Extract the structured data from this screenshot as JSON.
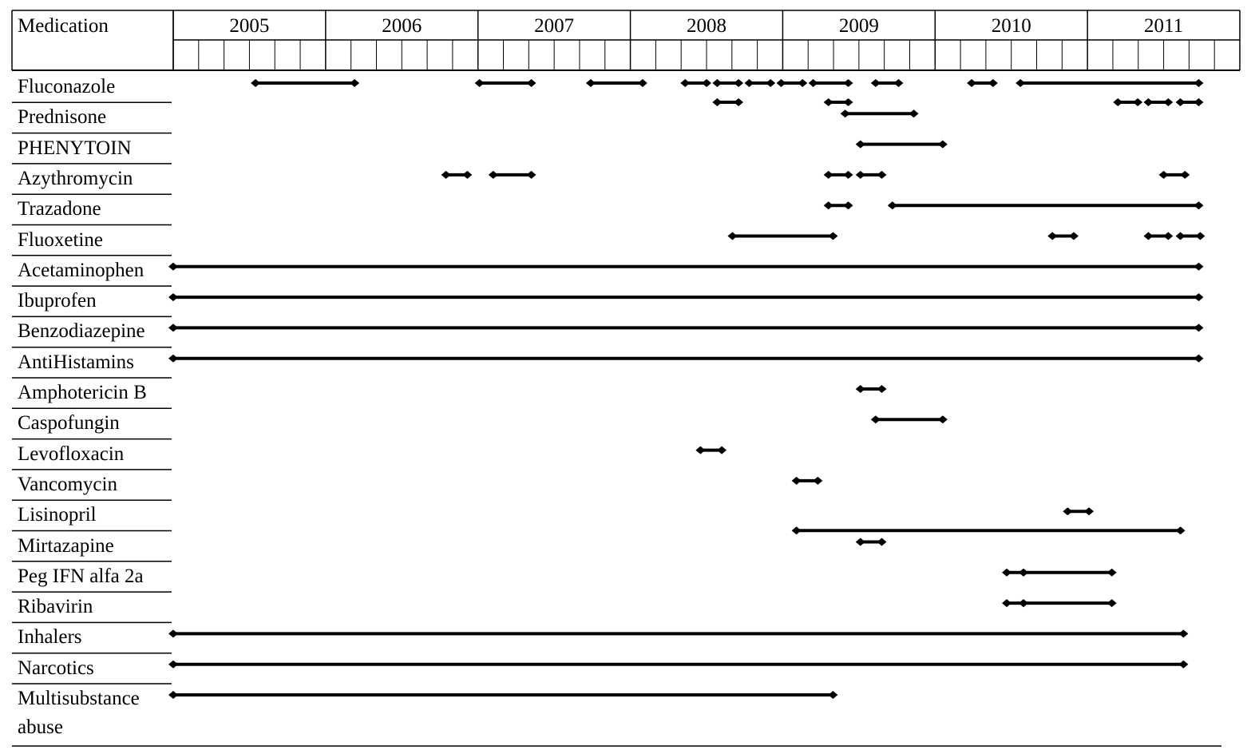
{
  "chart_data": {
    "type": "timeline",
    "header": "Medication",
    "years": [
      2005,
      2006,
      2007,
      2008,
      2009,
      2010,
      2011
    ],
    "xlim": [
      2005,
      2012
    ],
    "medications": [
      {
        "name": "Fluconazole",
        "periods": [
          [
            2005.54,
            2006.19
          ],
          [
            2007.01,
            2007.35
          ],
          [
            2007.74,
            2008.08
          ],
          [
            2008.36,
            2008.5
          ],
          [
            2008.57,
            2008.71
          ],
          [
            2008.78,
            2008.92
          ],
          [
            2008.99,
            2009.13
          ],
          [
            2009.2,
            2009.43
          ],
          [
            2009.61,
            2009.76
          ],
          [
            2010.24,
            2010.38
          ],
          [
            2010.56,
            2011.73
          ],
          [
            2008.57,
            2008.71
          ],
          [
            2009.3,
            2009.43
          ],
          [
            2011.2,
            2011.33
          ],
          [
            2011.4,
            2011.53
          ],
          [
            2011.61,
            2011.73
          ]
        ]
      },
      {
        "name": "Prednisone",
        "periods": [
          [
            2009.41,
            2009.86
          ]
        ]
      },
      {
        "name": "PHENYTOIN",
        "periods": [
          [
            2009.51,
            2010.05
          ]
        ]
      },
      {
        "name": "Azythromycin",
        "periods": [
          [
            2006.79,
            2006.93
          ],
          [
            2007.1,
            2007.35
          ],
          [
            2009.3,
            2009.43
          ],
          [
            2009.51,
            2009.65
          ],
          [
            2011.5,
            2011.64
          ]
        ]
      },
      {
        "name": "Trazadone",
        "periods": [
          [
            2009.3,
            2009.43
          ],
          [
            2009.72,
            2011.73
          ]
        ]
      },
      {
        "name": "Fluoxetine",
        "periods": [
          [
            2008.67,
            2009.33
          ],
          [
            2010.77,
            2010.91
          ],
          [
            2011.4,
            2011.53
          ],
          [
            2011.61,
            2011.74
          ]
        ]
      },
      {
        "name": "Acetaminophen",
        "periods": [
          [
            2005.0,
            2011.73
          ]
        ]
      },
      {
        "name": "Ibuprofen",
        "periods": [
          [
            2005.0,
            2011.73
          ]
        ]
      },
      {
        "name": "Benzodiazepine",
        "periods": [
          [
            2005.0,
            2011.73
          ]
        ]
      },
      {
        "name": "AntiHistamins",
        "periods": [
          [
            2005.0,
            2011.73
          ]
        ]
      },
      {
        "name": "Amphotericin B",
        "periods": [
          [
            2009.51,
            2009.65
          ]
        ]
      },
      {
        "name": "Caspofungin",
        "periods": [
          [
            2009.61,
            2010.05
          ]
        ]
      },
      {
        "name": "Levofloxacin",
        "periods": [
          [
            2008.46,
            2008.6
          ]
        ]
      },
      {
        "name": "Vancomycin",
        "periods": [
          [
            2009.09,
            2009.23
          ]
        ]
      },
      {
        "name": "Lisinopril",
        "periods": [
          [
            2010.87,
            2011.01
          ],
          [
            2009.09,
            2011.61
          ]
        ]
      },
      {
        "name": "Mirtazapine",
        "periods": [
          [
            2009.51,
            2009.65
          ]
        ]
      },
      {
        "name": "Peg IFN alfa 2a",
        "periods": [
          [
            2010.47,
            2010.58
          ],
          [
            2010.58,
            2011.16
          ]
        ]
      },
      {
        "name": "Ribavirin",
        "periods": [
          [
            2010.47,
            2010.58
          ],
          [
            2010.58,
            2011.16
          ]
        ]
      },
      {
        "name": "Inhalers",
        "periods": [
          [
            2005.0,
            2011.63
          ]
        ]
      },
      {
        "name": "Narcotics",
        "periods": [
          [
            2005.0,
            2011.63
          ]
        ]
      },
      {
        "name": "Multisubstance abuse",
        "periods": [
          [
            2005.0,
            2009.33
          ]
        ]
      }
    ]
  }
}
